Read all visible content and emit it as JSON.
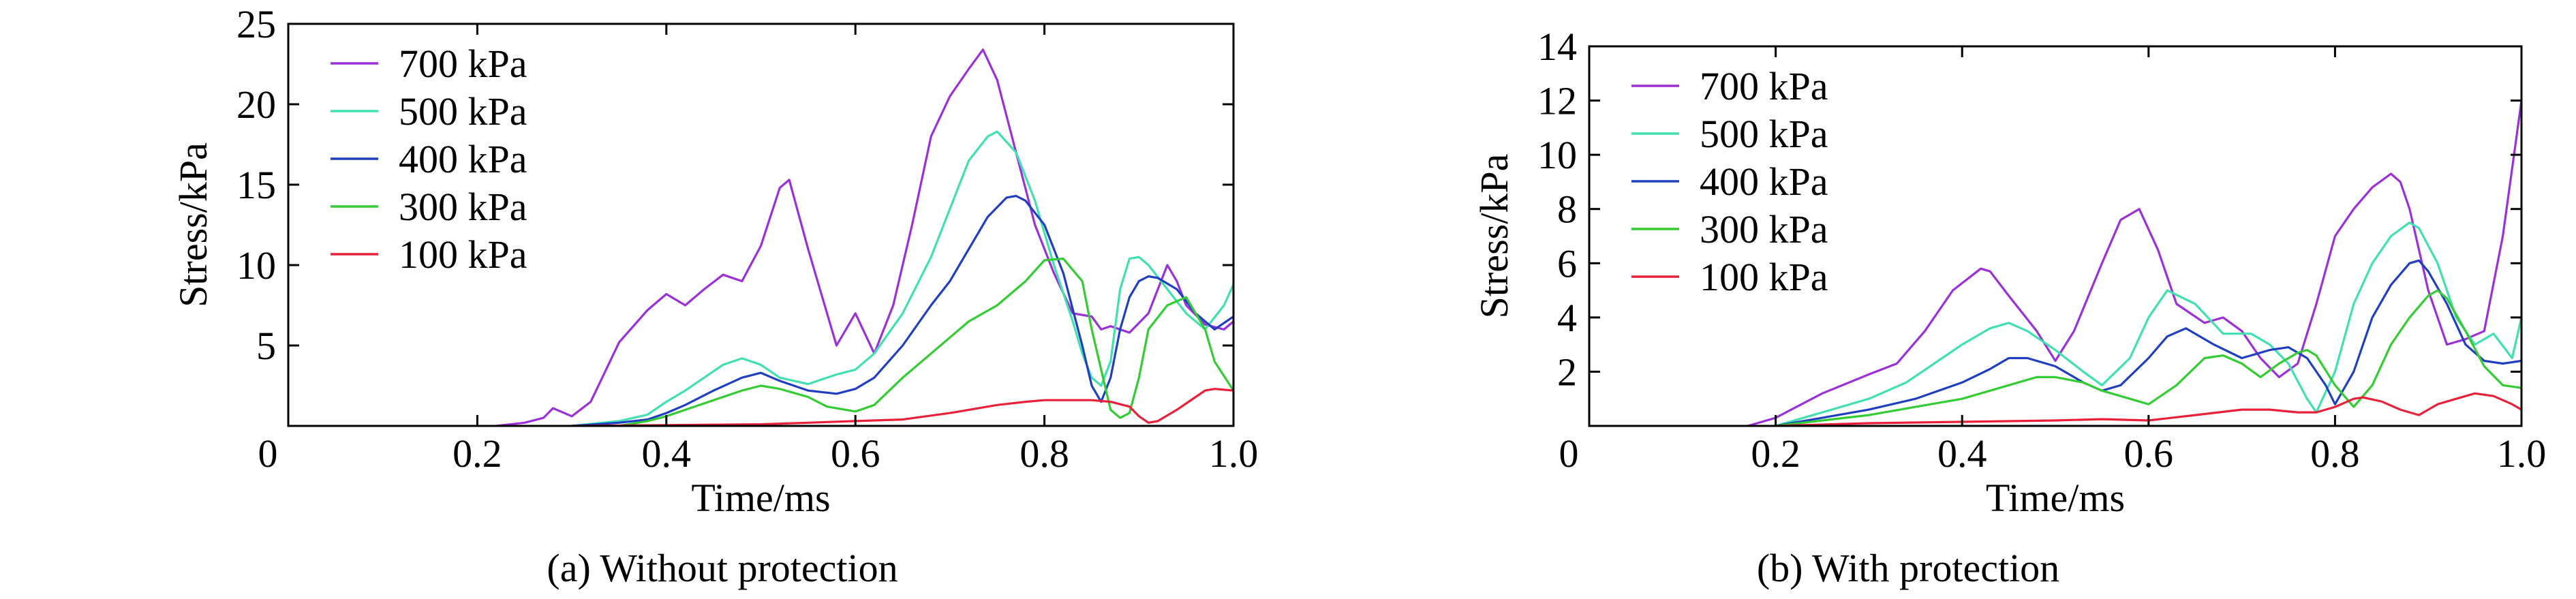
{
  "captions": {
    "a": "(a) Without protection",
    "b": "(b) With protection"
  },
  "chart_data": [
    {
      "type": "line",
      "xlabel": "Time/ms",
      "ylabel": "Stress/kPa",
      "xlim": [
        0,
        1.0
      ],
      "ylim": [
        0,
        25
      ],
      "x_ticks": [
        0,
        0.2,
        0.4,
        0.6,
        0.8,
        1.0
      ],
      "x_tick_labels": [
        "0",
        "0.2",
        "0.4",
        "0.6",
        "0.8",
        "1.0"
      ],
      "y_ticks": [
        5,
        10,
        15,
        20,
        25
      ],
      "y_tick_labels": [
        "5",
        "10",
        "15",
        "20",
        "25"
      ],
      "legend_position": "top-left",
      "grid": false,
      "series": [
        {
          "name": "700 kPa",
          "color": "#9b30d9",
          "x": [
            0.22,
            0.25,
            0.27,
            0.28,
            0.3,
            0.32,
            0.35,
            0.38,
            0.4,
            0.42,
            0.44,
            0.46,
            0.48,
            0.5,
            0.52,
            0.53,
            0.55,
            0.58,
            0.6,
            0.62,
            0.64,
            0.66,
            0.68,
            0.7,
            0.72,
            0.735,
            0.75,
            0.77,
            0.79,
            0.81,
            0.83,
            0.85,
            0.86,
            0.87,
            0.89,
            0.91,
            0.93,
            0.94,
            0.95,
            0.97,
            0.99,
            1.0
          ],
          "y": [
            0,
            0.2,
            0.5,
            1.1,
            0.6,
            1.5,
            5.2,
            7.2,
            8.2,
            7.5,
            8.5,
            9.4,
            9.0,
            11.2,
            14.8,
            15.3,
            11.0,
            5.0,
            7.0,
            4.5,
            7.5,
            12.5,
            18.0,
            20.5,
            22.2,
            23.4,
            21.5,
            17.0,
            12.5,
            9.5,
            7.0,
            6.8,
            6.0,
            6.2,
            5.8,
            7.0,
            10.0,
            9.0,
            7.5,
            6.3,
            6.0,
            6.5
          ]
        },
        {
          "name": "500 kPa",
          "color": "#40e0b0",
          "x": [
            0.3,
            0.35,
            0.38,
            0.4,
            0.42,
            0.44,
            0.46,
            0.48,
            0.5,
            0.52,
            0.55,
            0.58,
            0.6,
            0.62,
            0.65,
            0.68,
            0.7,
            0.72,
            0.74,
            0.75,
            0.77,
            0.79,
            0.81,
            0.83,
            0.84,
            0.85,
            0.86,
            0.87,
            0.88,
            0.89,
            0.9,
            0.91,
            0.93,
            0.95,
            0.97,
            0.99,
            1.0
          ],
          "y": [
            0,
            0.3,
            0.7,
            1.5,
            2.2,
            3.0,
            3.8,
            4.2,
            3.8,
            3.0,
            2.6,
            3.2,
            3.5,
            4.5,
            7.0,
            10.5,
            13.5,
            16.5,
            18.0,
            18.3,
            17.0,
            14.0,
            10.0,
            6.5,
            4.5,
            3.0,
            2.5,
            4.0,
            8.5,
            10.4,
            10.5,
            10.0,
            8.5,
            7.0,
            6.0,
            7.5,
            8.8
          ]
        },
        {
          "name": "400 kPa",
          "color": "#1f3fc0",
          "x": [
            0.3,
            0.35,
            0.38,
            0.4,
            0.42,
            0.45,
            0.48,
            0.5,
            0.52,
            0.55,
            0.58,
            0.6,
            0.62,
            0.65,
            0.68,
            0.7,
            0.72,
            0.74,
            0.76,
            0.77,
            0.78,
            0.8,
            0.82,
            0.84,
            0.85,
            0.86,
            0.87,
            0.88,
            0.89,
            0.9,
            0.91,
            0.92,
            0.94,
            0.96,
            0.98,
            1.0
          ],
          "y": [
            0,
            0.2,
            0.4,
            0.8,
            1.3,
            2.2,
            3.0,
            3.3,
            2.8,
            2.2,
            2.0,
            2.3,
            3.0,
            5.0,
            7.5,
            9.0,
            11.0,
            13.0,
            14.2,
            14.3,
            14.0,
            12.5,
            9.5,
            5.0,
            2.5,
            1.5,
            3.0,
            6.0,
            8.0,
            9.0,
            9.3,
            9.2,
            8.5,
            7.0,
            6.0,
            6.8
          ]
        },
        {
          "name": "300 kPa",
          "color": "#33cc33",
          "x": [
            0.35,
            0.38,
            0.4,
            0.42,
            0.45,
            0.48,
            0.5,
            0.52,
            0.55,
            0.57,
            0.6,
            0.62,
            0.65,
            0.68,
            0.7,
            0.72,
            0.75,
            0.78,
            0.8,
            0.82,
            0.84,
            0.85,
            0.86,
            0.87,
            0.88,
            0.89,
            0.9,
            0.91,
            0.93,
            0.95,
            0.96,
            0.97,
            0.98,
            1.0
          ],
          "y": [
            0,
            0.3,
            0.6,
            1.0,
            1.6,
            2.2,
            2.5,
            2.3,
            1.8,
            1.2,
            0.9,
            1.3,
            3.0,
            4.5,
            5.5,
            6.5,
            7.5,
            9.0,
            10.3,
            10.4,
            9.0,
            6.0,
            3.5,
            1.0,
            0.5,
            0.8,
            3.0,
            6.0,
            7.5,
            8.0,
            7.0,
            6.0,
            4.0,
            2.2
          ]
        },
        {
          "name": "100 kPa",
          "color": "#e8203a",
          "x": [
            0.3,
            0.4,
            0.5,
            0.55,
            0.6,
            0.65,
            0.7,
            0.75,
            0.78,
            0.8,
            0.83,
            0.85,
            0.87,
            0.89,
            0.9,
            0.91,
            0.92,
            0.94,
            0.96,
            0.97,
            0.98,
            1.0
          ],
          "y": [
            0,
            0.05,
            0.1,
            0.2,
            0.3,
            0.4,
            0.8,
            1.3,
            1.5,
            1.6,
            1.6,
            1.6,
            1.5,
            1.2,
            0.6,
            0.2,
            0.3,
            1.0,
            1.8,
            2.2,
            2.3,
            2.2
          ]
        }
      ]
    },
    {
      "type": "line",
      "xlabel": "Time/ms",
      "ylabel": "Stress/kPa",
      "xlim": [
        0,
        1.0
      ],
      "ylim": [
        0,
        14
      ],
      "x_ticks": [
        0,
        0.2,
        0.4,
        0.6,
        0.8,
        1.0
      ],
      "x_tick_labels": [
        "0",
        "0.2",
        "0.4",
        "0.6",
        "0.8",
        "1.0"
      ],
      "y_ticks": [
        2,
        4,
        6,
        8,
        10,
        12,
        14
      ],
      "y_tick_labels": [
        "2",
        "4",
        "6",
        "8",
        "10",
        "12",
        "14"
      ],
      "legend_position": "top-left",
      "grid": false,
      "series": [
        {
          "name": "700 kPa",
          "color": "#9b30d9",
          "x": [
            0.17,
            0.2,
            0.25,
            0.3,
            0.33,
            0.36,
            0.39,
            0.42,
            0.43,
            0.45,
            0.48,
            0.5,
            0.52,
            0.55,
            0.57,
            0.59,
            0.61,
            0.63,
            0.66,
            0.68,
            0.7,
            0.72,
            0.74,
            0.76,
            0.78,
            0.8,
            0.82,
            0.84,
            0.86,
            0.87,
            0.88,
            0.89,
            0.9,
            0.91,
            0.92,
            0.94,
            0.96,
            0.98,
            1.0
          ],
          "y": [
            0,
            0.3,
            1.2,
            1.9,
            2.3,
            3.5,
            5.0,
            5.8,
            5.7,
            4.8,
            3.5,
            2.4,
            3.5,
            6.0,
            7.6,
            8.0,
            6.5,
            4.5,
            3.8,
            4.0,
            3.5,
            2.5,
            1.8,
            2.3,
            4.5,
            7.0,
            8.0,
            8.8,
            9.3,
            9.0,
            8.0,
            6.5,
            5.0,
            4.0,
            3.0,
            3.2,
            3.5,
            7.0,
            12.0
          ]
        },
        {
          "name": "500 kPa",
          "color": "#40e0b0",
          "x": [
            0.2,
            0.25,
            0.3,
            0.34,
            0.37,
            0.4,
            0.43,
            0.45,
            0.47,
            0.5,
            0.53,
            0.55,
            0.58,
            0.6,
            0.62,
            0.65,
            0.68,
            0.71,
            0.73,
            0.75,
            0.77,
            0.78,
            0.8,
            0.82,
            0.84,
            0.86,
            0.88,
            0.89,
            0.91,
            0.93,
            0.95,
            0.97,
            0.99,
            1.0
          ],
          "y": [
            0,
            0.5,
            1.0,
            1.6,
            2.3,
            3.0,
            3.6,
            3.8,
            3.5,
            2.8,
            2.0,
            1.5,
            2.5,
            4.0,
            5.0,
            4.5,
            3.4,
            3.4,
            3.0,
            2.3,
            1.0,
            0.5,
            2.0,
            4.5,
            6.0,
            7.0,
            7.5,
            7.3,
            6.0,
            4.0,
            3.0,
            3.4,
            2.5,
            4.0
          ]
        },
        {
          "name": "400 kPa",
          "color": "#1f3fc0",
          "x": [
            0.2,
            0.25,
            0.3,
            0.35,
            0.4,
            0.43,
            0.45,
            0.47,
            0.5,
            0.53,
            0.55,
            0.57,
            0.6,
            0.62,
            0.64,
            0.67,
            0.7,
            0.73,
            0.75,
            0.77,
            0.79,
            0.8,
            0.82,
            0.84,
            0.86,
            0.88,
            0.89,
            0.9,
            0.92,
            0.94,
            0.96,
            0.98,
            1.0
          ],
          "y": [
            0,
            0.3,
            0.6,
            1.0,
            1.6,
            2.1,
            2.5,
            2.5,
            2.2,
            1.6,
            1.3,
            1.5,
            2.5,
            3.3,
            3.6,
            3.0,
            2.5,
            2.8,
            2.9,
            2.5,
            1.5,
            0.8,
            2.0,
            4.0,
            5.2,
            6.0,
            6.1,
            5.7,
            4.5,
            3.0,
            2.4,
            2.3,
            2.4
          ]
        },
        {
          "name": "300 kPa",
          "color": "#33cc33",
          "x": [
            0.2,
            0.25,
            0.3,
            0.35,
            0.4,
            0.43,
            0.46,
            0.48,
            0.5,
            0.53,
            0.55,
            0.58,
            0.6,
            0.63,
            0.66,
            0.68,
            0.7,
            0.72,
            0.74,
            0.76,
            0.77,
            0.78,
            0.8,
            0.82,
            0.84,
            0.86,
            0.88,
            0.9,
            0.91,
            0.92,
            0.94,
            0.96,
            0.98,
            1.0
          ],
          "y": [
            0,
            0.2,
            0.4,
            0.7,
            1.0,
            1.3,
            1.6,
            1.8,
            1.8,
            1.6,
            1.3,
            1.0,
            0.8,
            1.5,
            2.5,
            2.6,
            2.3,
            1.8,
            2.3,
            2.7,
            2.8,
            2.6,
            1.5,
            0.7,
            1.5,
            3.0,
            4.0,
            4.8,
            5.0,
            4.7,
            3.5,
            2.2,
            1.5,
            1.4
          ]
        },
        {
          "name": "100 kPa",
          "color": "#e8203a",
          "x": [
            0.2,
            0.3,
            0.4,
            0.5,
            0.55,
            0.6,
            0.65,
            0.7,
            0.73,
            0.76,
            0.78,
            0.8,
            0.82,
            0.83,
            0.85,
            0.87,
            0.89,
            0.91,
            0.93,
            0.95,
            0.97,
            0.99,
            1.0
          ],
          "y": [
            0,
            0.1,
            0.15,
            0.2,
            0.25,
            0.2,
            0.4,
            0.6,
            0.6,
            0.5,
            0.5,
            0.7,
            1.0,
            1.05,
            0.9,
            0.6,
            0.4,
            0.8,
            1.0,
            1.2,
            1.1,
            0.8,
            0.6
          ]
        }
      ]
    }
  ]
}
